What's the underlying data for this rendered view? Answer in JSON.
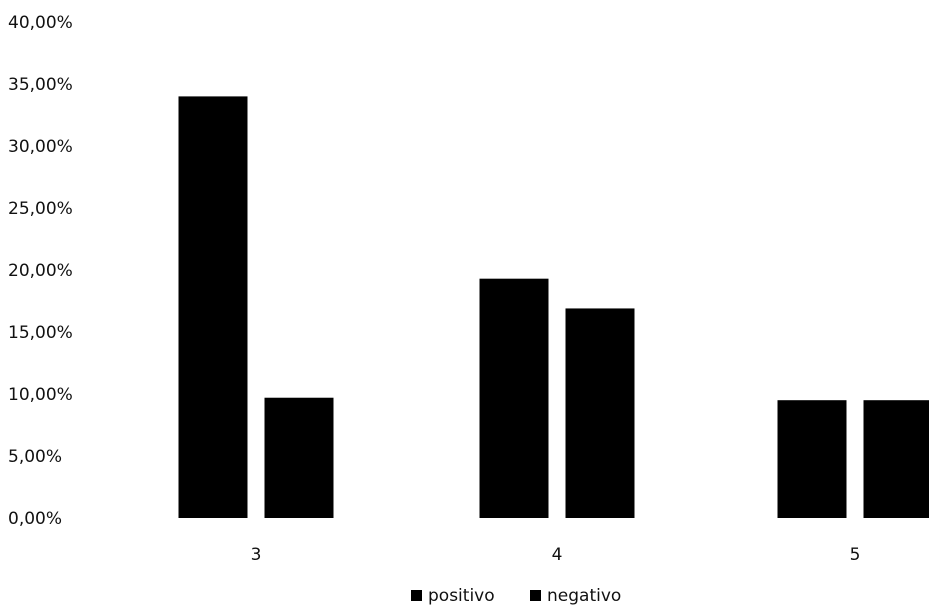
{
  "chart_data": {
    "type": "bar",
    "categories": [
      "3",
      "4",
      "5"
    ],
    "series": [
      {
        "name": "positivo",
        "values": [
          34.0,
          19.3,
          9.5
        ]
      },
      {
        "name": "negativo",
        "values": [
          9.7,
          16.9,
          9.5
        ]
      }
    ],
    "title": "",
    "xlabel": "",
    "ylabel": "",
    "ylim": [
      0,
      40
    ],
    "yticks": [
      "0,00%",
      "5,00%",
      "10,00%",
      "15,00%",
      "20,00%",
      "25,00%",
      "30,00%",
      "35,00%",
      "40,00%"
    ],
    "grid": false,
    "legend": "bottom",
    "colors": {
      "positivo": "#000000",
      "negativo": "#000000"
    }
  }
}
